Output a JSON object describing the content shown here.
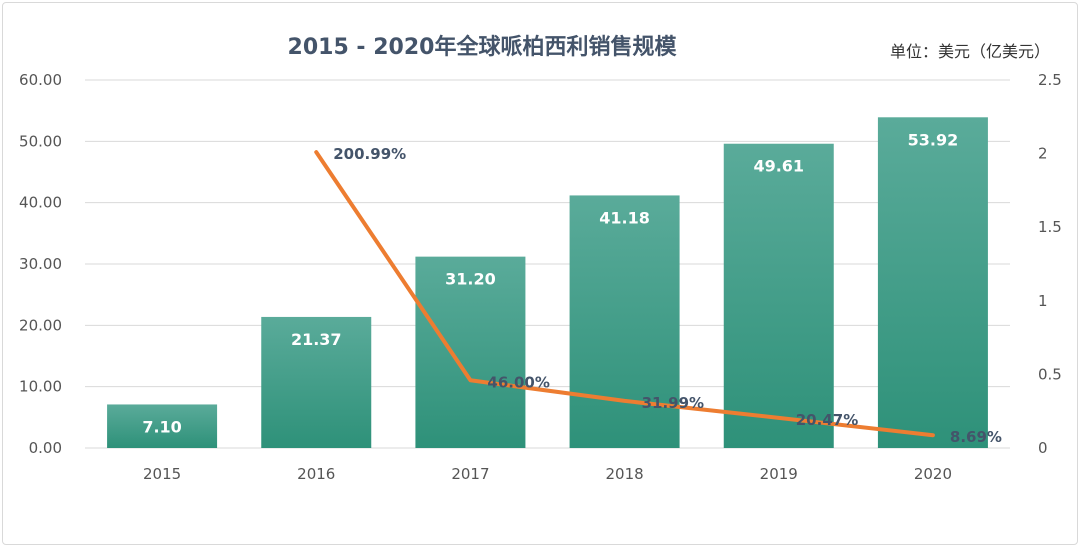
{
  "chart_data": {
    "type": "bar",
    "title": "2015 - 2020年全球哌柏西利销售规模",
    "unit_label": "单位：美元（亿美元）",
    "categories": [
      "2015",
      "2016",
      "2017",
      "2018",
      "2019",
      "2020"
    ],
    "series": [
      {
        "type": "bar",
        "values": [
          7.1,
          21.37,
          31.2,
          41.18,
          49.61,
          53.92
        ],
        "labels": [
          "7.10",
          "21.37",
          "31.20",
          "41.18",
          "49.61",
          "53.92"
        ],
        "color": "#3a9c86",
        "axis": "left"
      },
      {
        "type": "line",
        "values": [
          null,
          2.0099,
          0.46,
          0.3199,
          0.2047,
          0.0869
        ],
        "labels": [
          "",
          "200.99%",
          "46.00%",
          "31.99%",
          "20.47%",
          "8.69%"
        ],
        "color": "#ed7d31",
        "axis": "right"
      }
    ],
    "y_left": {
      "min": 0,
      "max": 60,
      "ticks": [
        "0.00",
        "10.00",
        "20.00",
        "30.00",
        "40.00",
        "50.00",
        "60.00"
      ]
    },
    "y_right": {
      "min": 0,
      "max": 2.5,
      "ticks": [
        "0",
        "0.5",
        "1",
        "1.5",
        "2",
        "2.5"
      ]
    },
    "grid": true,
    "legend": "none"
  }
}
